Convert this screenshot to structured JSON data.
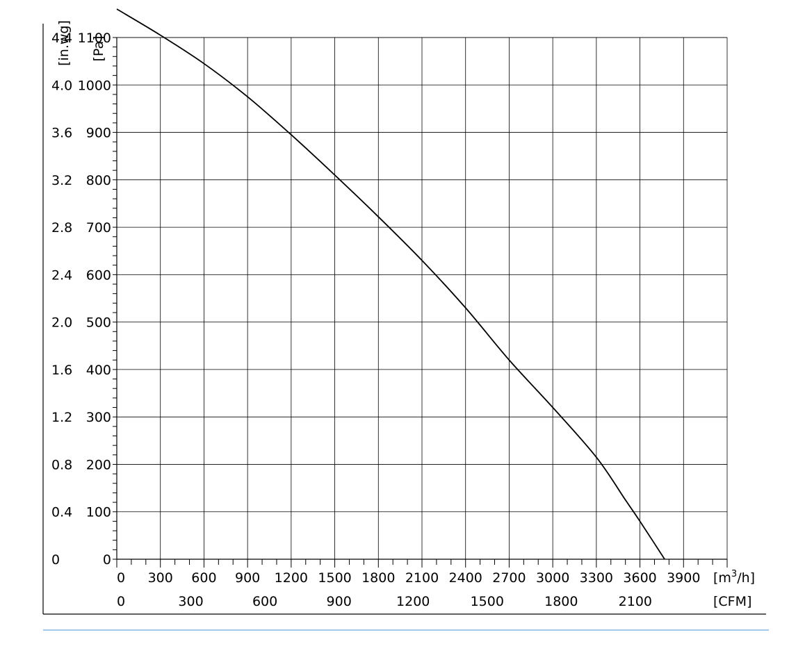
{
  "chart_data": {
    "type": "line",
    "title": "",
    "x_primary": {
      "label": "[m³/h]",
      "label_base": "[m",
      "label_sup": "3",
      "label_tail": "/h]",
      "range": [
        0,
        4200
      ],
      "major_step": 300,
      "minor_step": 100,
      "ticks": [
        "0",
        "300",
        "600",
        "900",
        "1200",
        "1500",
        "1800",
        "2100",
        "2400",
        "2700",
        "3000",
        "3300",
        "3600",
        "3900"
      ]
    },
    "x_secondary": {
      "label": "[CFM]",
      "ticks": [
        {
          "label": "0",
          "value": 0
        },
        {
          "label": "300",
          "value": 300
        },
        {
          "label": "600",
          "value": 600
        },
        {
          "label": "900",
          "value": 900
        },
        {
          "label": "1200",
          "value": 1200
        },
        {
          "label": "1500",
          "value": 1500
        },
        {
          "label": "1800",
          "value": 1800
        },
        {
          "label": "2100",
          "value": 2100
        }
      ]
    },
    "y_primary": {
      "label": "[Pa]",
      "range": [
        0,
        1100
      ],
      "major_step": 100,
      "minor_step": 20,
      "ticks": [
        "0",
        "100",
        "200",
        "300",
        "400",
        "500",
        "600",
        "700",
        "800",
        "900",
        "1000",
        "1100"
      ]
    },
    "y_secondary": {
      "label": "[in.wg]",
      "ticks": [
        "0",
        "0.4",
        "0.8",
        "1.2",
        "1.6",
        "2.0",
        "2.4",
        "2.8",
        "3.2",
        "3.6",
        "4.0",
        "4.4"
      ]
    },
    "grid": true,
    "series": [
      {
        "x": [
          0,
          300,
          600,
          900,
          1200,
          1500,
          1800,
          2100,
          2400,
          2700,
          3000,
          3300,
          3500,
          3600,
          3770
        ],
        "y": [
          1160,
          1105,
          1045,
          975,
          895,
          810,
          722,
          630,
          530,
          420,
          320,
          215,
          125,
          80,
          0
        ]
      }
    ],
    "line_color": "#000000",
    "grid_color": "#000000",
    "footer_rule_color": "#4a90d9"
  }
}
